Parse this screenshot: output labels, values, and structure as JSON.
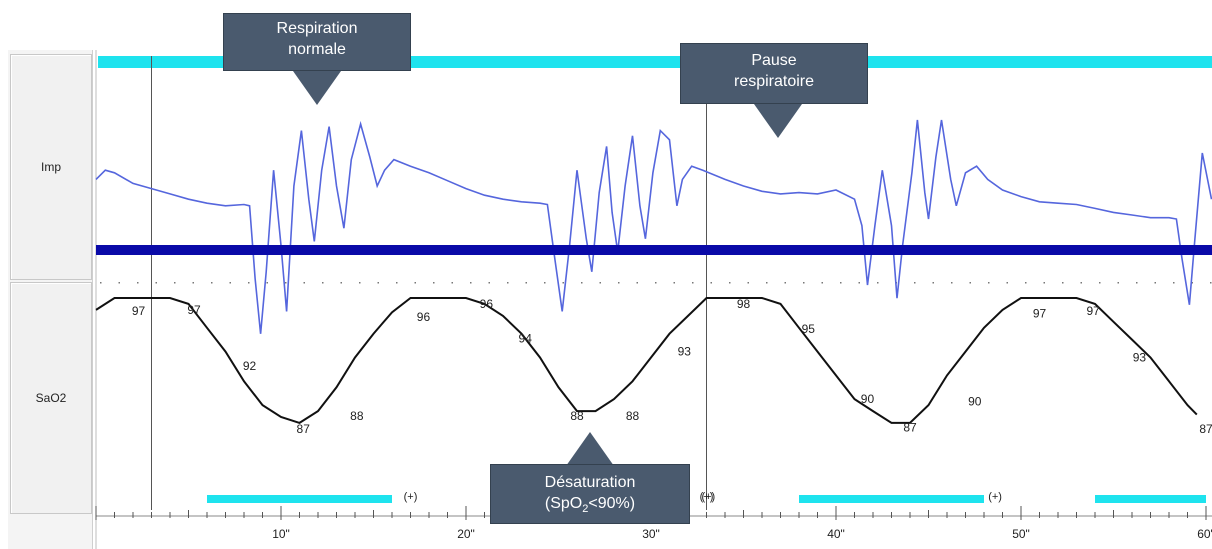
{
  "panels": {
    "imp_label": "Imp",
    "sao2_label": "SaO2"
  },
  "annotations": {
    "normal_line1": "Respiration",
    "normal_line2": "normale",
    "pause_line1": "Pause",
    "pause_line2": "respiratoire",
    "desat_line1": "Désaturation",
    "desat_spo": "(SpO",
    "desat_sub": "2",
    "desat_rest": "<90%)"
  },
  "colors": {
    "top_bar": "#1ee3ee",
    "impedance": "#5566dd",
    "baseline": "#0a0aa8",
    "sao2": "#111111",
    "event_bar": "#1ee3ee",
    "callout": "#4a5a6e"
  },
  "chart_data": {
    "type": "line",
    "x_unit": "seconds",
    "xlim": [
      0,
      60
    ],
    "x_tick_labels": [
      "10\"",
      "20\"",
      "30\"",
      "40\"",
      "50\"",
      "60\""
    ],
    "x_tick_values": [
      10,
      20,
      30,
      40,
      50,
      60
    ],
    "event_markers": [
      "(+)",
      "(+)",
      "(+)",
      "(+)"
    ],
    "event_marker_times": [
      17,
      33,
      33.1,
      48.6
    ],
    "event_bars": [
      [
        6,
        16
      ],
      [
        38,
        48
      ],
      [
        54,
        60
      ]
    ],
    "cursor_times": [
      3,
      33
    ],
    "series": [
      {
        "name": "Imp",
        "points": [
          [
            0,
            0.55
          ],
          [
            0.5,
            0.62
          ],
          [
            1,
            0.6
          ],
          [
            2,
            0.52
          ],
          [
            3,
            0.48
          ],
          [
            4,
            0.44
          ],
          [
            5,
            0.4
          ],
          [
            6,
            0.37
          ],
          [
            7,
            0.35
          ],
          [
            8,
            0.36
          ],
          [
            8.3,
            0.35
          ],
          [
            8.6,
            -0.2
          ],
          [
            8.9,
            -0.62
          ],
          [
            9.2,
            -0.15
          ],
          [
            9.6,
            0.62
          ],
          [
            10,
            0.05
          ],
          [
            10.3,
            -0.45
          ],
          [
            10.7,
            0.5
          ],
          [
            11.1,
            0.92
          ],
          [
            11.5,
            0.4
          ],
          [
            11.8,
            0.08
          ],
          [
            12.2,
            0.62
          ],
          [
            12.6,
            0.95
          ],
          [
            13,
            0.5
          ],
          [
            13.4,
            0.18
          ],
          [
            13.8,
            0.7
          ],
          [
            14.3,
            0.97
          ],
          [
            14.8,
            0.72
          ],
          [
            15.2,
            0.5
          ],
          [
            15.6,
            0.62
          ],
          [
            16.1,
            0.7
          ],
          [
            17,
            0.65
          ],
          [
            18,
            0.6
          ],
          [
            19,
            0.54
          ],
          [
            20,
            0.48
          ],
          [
            21,
            0.43
          ],
          [
            22,
            0.4
          ],
          [
            23,
            0.38
          ],
          [
            24,
            0.37
          ],
          [
            24.4,
            0.36
          ],
          [
            24.8,
            -0.05
          ],
          [
            25.2,
            -0.45
          ],
          [
            25.6,
            0.05
          ],
          [
            26,
            0.62
          ],
          [
            26.5,
            0.1
          ],
          [
            26.8,
            -0.15
          ],
          [
            27.2,
            0.45
          ],
          [
            27.6,
            0.8
          ],
          [
            27.9,
            0.3
          ],
          [
            28.2,
            0.0
          ],
          [
            28.6,
            0.5
          ],
          [
            29,
            0.88
          ],
          [
            29.4,
            0.35
          ],
          [
            29.7,
            0.1
          ],
          [
            30.1,
            0.6
          ],
          [
            30.5,
            0.92
          ],
          [
            31,
            0.85
          ],
          [
            31.4,
            0.35
          ],
          [
            31.7,
            0.55
          ],
          [
            32.2,
            0.65
          ],
          [
            32.8,
            0.62
          ],
          [
            34,
            0.55
          ],
          [
            35,
            0.5
          ],
          [
            36,
            0.46
          ],
          [
            37,
            0.44
          ],
          [
            38,
            0.45
          ],
          [
            39,
            0.44
          ],
          [
            40,
            0.47
          ],
          [
            41,
            0.4
          ],
          [
            41.4,
            0.2
          ],
          [
            41.7,
            -0.25
          ],
          [
            42.1,
            0.2
          ],
          [
            42.5,
            0.62
          ],
          [
            43,
            0.2
          ],
          [
            43.3,
            -0.35
          ],
          [
            43.6,
            0.05
          ],
          [
            44.1,
            0.6
          ],
          [
            44.4,
            1.0
          ],
          [
            44.8,
            0.45
          ],
          [
            45,
            0.25
          ],
          [
            45.4,
            0.72
          ],
          [
            45.7,
            1.0
          ],
          [
            46.2,
            0.55
          ],
          [
            46.5,
            0.35
          ],
          [
            47,
            0.6
          ],
          [
            47.6,
            0.65
          ],
          [
            48.2,
            0.55
          ],
          [
            49,
            0.47
          ],
          [
            50,
            0.42
          ],
          [
            51,
            0.38
          ],
          [
            52,
            0.37
          ],
          [
            53,
            0.36
          ],
          [
            54,
            0.33
          ],
          [
            55,
            0.3
          ],
          [
            56,
            0.28
          ],
          [
            57,
            0.26
          ],
          [
            58,
            0.26
          ],
          [
            58.4,
            0.25
          ],
          [
            58.7,
            -0.05
          ],
          [
            59.1,
            -0.4
          ],
          [
            59.4,
            0.1
          ],
          [
            59.8,
            0.75
          ],
          [
            60.3,
            0.4
          ]
        ]
      },
      {
        "name": "SaO2",
        "points": [
          [
            0,
            96.5
          ],
          [
            1,
            97.5
          ],
          [
            4,
            97.5
          ],
          [
            5,
            97
          ],
          [
            6,
            95
          ],
          [
            7,
            93
          ],
          [
            8,
            90.5
          ],
          [
            9,
            88.5
          ],
          [
            10,
            87.5
          ],
          [
            11,
            87
          ],
          [
            12,
            88
          ],
          [
            13,
            90
          ],
          [
            14,
            92.5
          ],
          [
            15,
            94.5
          ],
          [
            16,
            96.3
          ],
          [
            17,
            97.5
          ],
          [
            20,
            97.5
          ],
          [
            21,
            97
          ],
          [
            22,
            96
          ],
          [
            23,
            94.5
          ],
          [
            24,
            92.5
          ],
          [
            25,
            90
          ],
          [
            26,
            88
          ],
          [
            27,
            88
          ],
          [
            28,
            89
          ],
          [
            29,
            90.5
          ],
          [
            30,
            92.5
          ],
          [
            31,
            94.5
          ],
          [
            32,
            96
          ],
          [
            33,
            97.5
          ],
          [
            36,
            97.5
          ],
          [
            37,
            97
          ],
          [
            38,
            95
          ],
          [
            39,
            93
          ],
          [
            40,
            91
          ],
          [
            41,
            89
          ],
          [
            42,
            88
          ],
          [
            43,
            87
          ],
          [
            44,
            87
          ],
          [
            45,
            88.5
          ],
          [
            46,
            91
          ],
          [
            47,
            93
          ],
          [
            48,
            95
          ],
          [
            49,
            96.5
          ],
          [
            50,
            97.5
          ],
          [
            53,
            97.5
          ],
          [
            54,
            97
          ],
          [
            55,
            95.5
          ],
          [
            56,
            94
          ],
          [
            57,
            92.5
          ],
          [
            58,
            90.5
          ],
          [
            59,
            88.5
          ],
          [
            59.5,
            87.7
          ]
        ]
      }
    ],
    "sao2_labels": [
      {
        "t": 2.3,
        "v": 96.4,
        "text": "97"
      },
      {
        "t": 5.3,
        "v": 96.5,
        "text": "97"
      },
      {
        "t": 8.3,
        "v": 91.8,
        "text": "92"
      },
      {
        "t": 11.2,
        "v": 86.5,
        "text": "87"
      },
      {
        "t": 14.1,
        "v": 87.6,
        "text": "88"
      },
      {
        "t": 17.7,
        "v": 95.9,
        "text": "96"
      },
      {
        "t": 21.1,
        "v": 97.0,
        "text": "96"
      },
      {
        "t": 23.2,
        "v": 94.1,
        "text": "94"
      },
      {
        "t": 26.0,
        "v": 87.6,
        "text": "88"
      },
      {
        "t": 29.0,
        "v": 87.6,
        "text": "88"
      },
      {
        "t": 31.8,
        "v": 93.0,
        "text": "93"
      },
      {
        "t": 35.0,
        "v": 97.0,
        "text": "98"
      },
      {
        "t": 38.5,
        "v": 94.9,
        "text": "95"
      },
      {
        "t": 41.7,
        "v": 89.0,
        "text": "90"
      },
      {
        "t": 44.0,
        "v": 86.6,
        "text": "87"
      },
      {
        "t": 47.5,
        "v": 88.8,
        "text": "90"
      },
      {
        "t": 51.0,
        "v": 96.2,
        "text": "97"
      },
      {
        "t": 53.9,
        "v": 96.4,
        "text": "97"
      },
      {
        "t": 56.4,
        "v": 92.5,
        "text": "93"
      },
      {
        "t": 60.0,
        "v": 86.5,
        "text": "87"
      }
    ]
  }
}
